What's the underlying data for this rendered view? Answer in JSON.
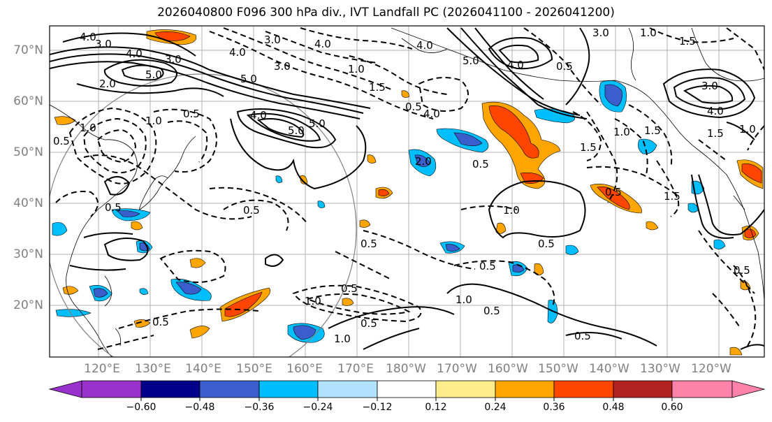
{
  "title": "2026040800 F096 300 hPa div., IVT Landfall PC (2026041100 - 2026041200)",
  "latitude_labels": [
    "70°N",
    "60°N",
    "50°N",
    "40°N",
    "30°N",
    "20°N"
  ],
  "longitude_labels": [
    "120°E",
    "130°E",
    "140°E",
    "150°E",
    "160°E",
    "170°E",
    "180°W",
    "170°W",
    "160°W",
    "150°W",
    "140°W",
    "130°W",
    "120°W"
  ],
  "colorbar": {
    "ticks": [
      "−0.60",
      "−0.48",
      "−0.36",
      "−0.24",
      "−0.12",
      "0.12",
      "0.24",
      "0.36",
      "0.48",
      "0.60"
    ],
    "colors": [
      "#9932cc",
      "#00008b",
      "#3a5fcd",
      "#00bfff",
      "#b0e2ff",
      "#ffffff",
      "#ffec8b",
      "#ffa500",
      "#ff4500",
      "#b22222",
      "#ff82ab"
    ]
  },
  "contour_labels": [
    "4.0",
    "3.0",
    "4.0",
    "5.0",
    "2.0",
    "3.0",
    "4.0",
    "3.0",
    "5.0",
    "5.0",
    "4.0",
    "5.0",
    "1.0",
    "0.5",
    "1.0",
    "0.5",
    "0.5",
    "0.5",
    "3.0",
    "4.0",
    "1.0",
    "1.5",
    "0.5",
    "4.0",
    "2.0",
    "0.5",
    "0.5",
    "1.0",
    "0.5",
    "0.5",
    "0.5",
    "1.0",
    "0.5",
    "0.5",
    "1.0",
    "0.5",
    "1.0",
    "0.5",
    "3.0",
    "1.0",
    "1.5",
    "4.0",
    "0.5",
    "1.0",
    "1.5",
    "0.5",
    "3.0",
    "4.0",
    "1.5",
    "1.0",
    "1.5",
    "0.5",
    "4.0",
    "5.0",
    "1.5"
  ],
  "icons": {
    "map_area": "north-pacific-map",
    "circle_overlay": "landfall-region-circle"
  }
}
